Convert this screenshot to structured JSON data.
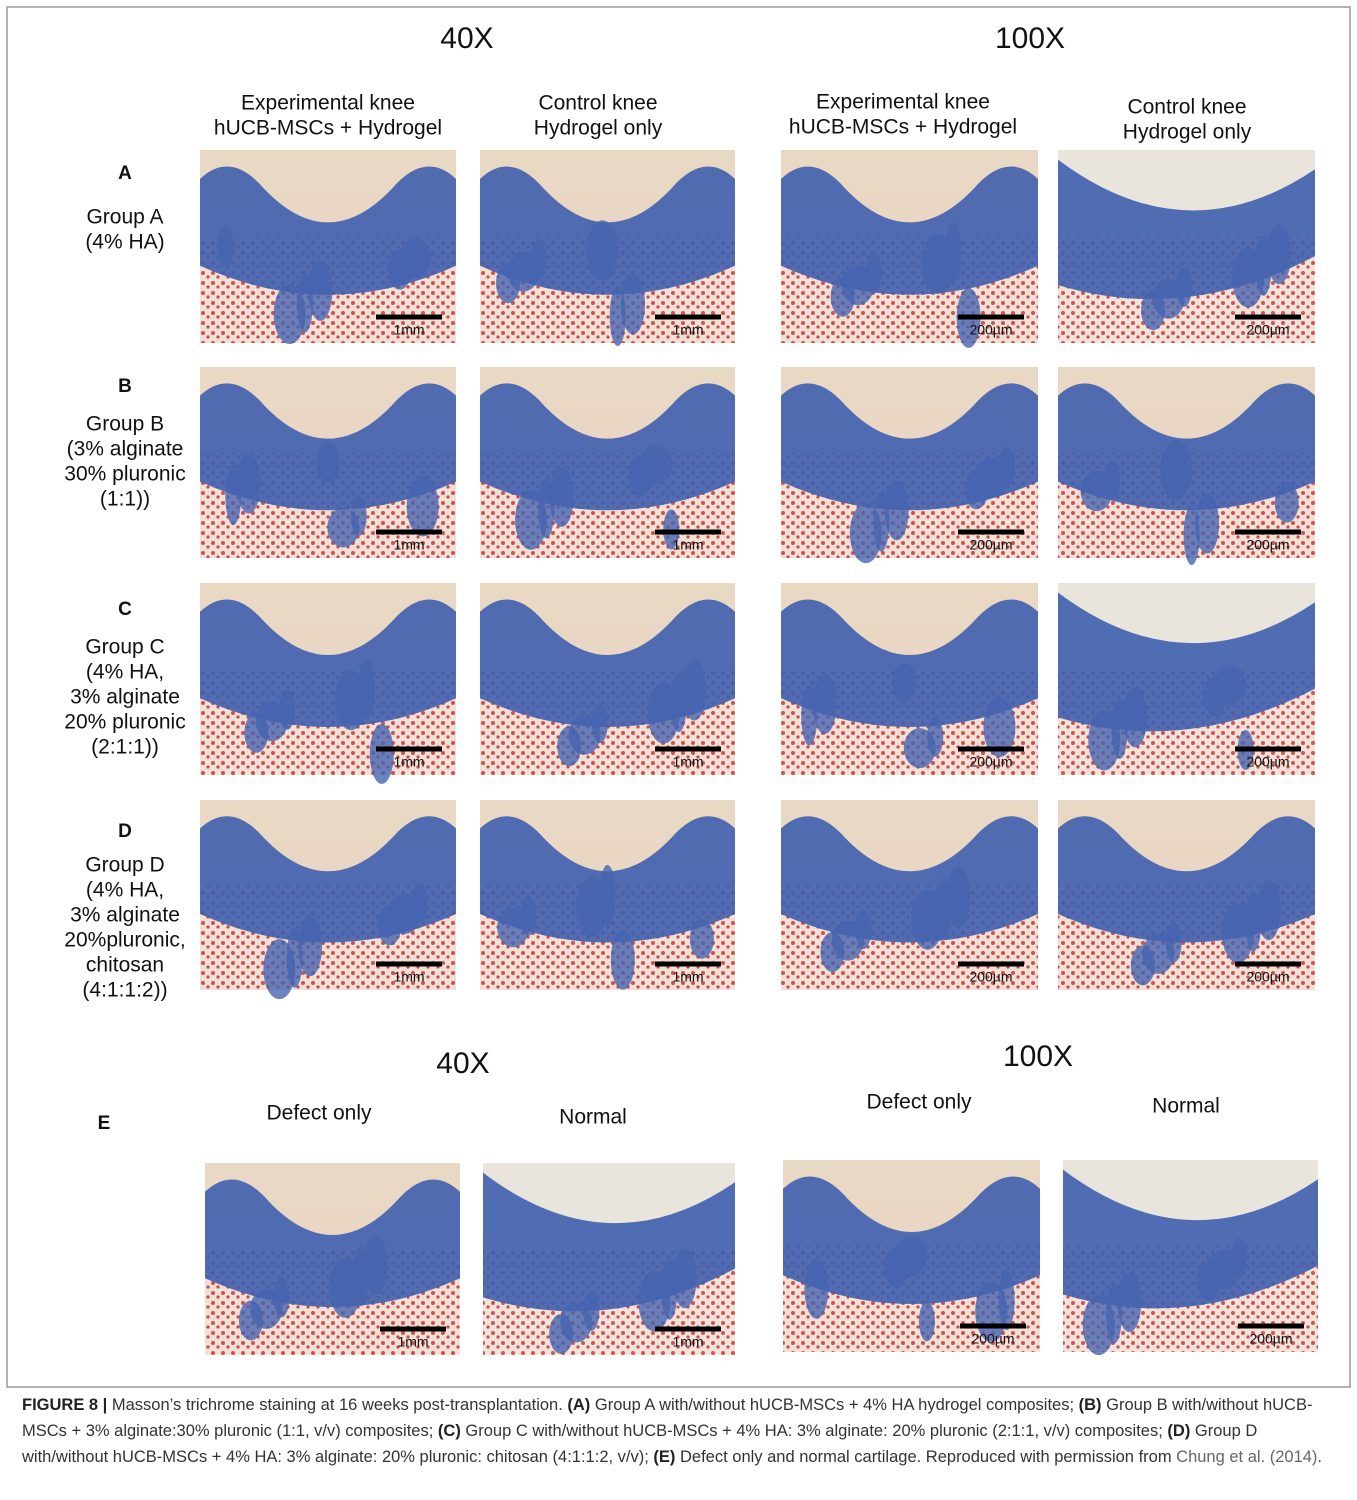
{
  "figure": {
    "magnifications": [
      "40X",
      "100X"
    ],
    "columns": [
      {
        "lines": [
          "Experimental knee",
          "hUCB-MSCs + Hydrogel"
        ]
      },
      {
        "lines": [
          "Control knee",
          "Hydrogel only"
        ]
      },
      {
        "lines": [
          "Experimental knee",
          "hUCB-MSCs + Hydrogel"
        ]
      },
      {
        "lines": [
          "Control knee",
          "Hydrogel only"
        ]
      }
    ],
    "rows": [
      {
        "letter": "A",
        "lines": [
          "Group A",
          "(4% HA)"
        ],
        "scale_bars": [
          "1mm",
          "1mm",
          "200µm",
          "200µm"
        ]
      },
      {
        "letter": "B",
        "lines": [
          "Group B",
          "(3% alginate",
          "30% pluronic",
          "(1:1))"
        ],
        "scale_bars": [
          "1mm",
          "1mm",
          "200µm",
          "200µm"
        ]
      },
      {
        "letter": "C",
        "lines": [
          "Group C",
          "(4% HA,",
          "3% alginate",
          "20% pluronic",
          "(2:1:1))"
        ],
        "scale_bars": [
          "1mm",
          "1mm",
          "200µm",
          "200µm"
        ]
      },
      {
        "letter": "D",
        "lines": [
          "Group D",
          "(4% HA,",
          "3% alginate",
          "20%pluronic,",
          "chitosan",
          "(4:1:1:2))"
        ],
        "scale_bars": [
          "1mm",
          "1mm",
          "200µm",
          "200µm"
        ]
      }
    ]
  },
  "panel_e": {
    "letter": "E",
    "magnifications": [
      "40X",
      "100X"
    ],
    "columns": [
      "Defect only",
      "Normal",
      "Defect only",
      "Normal"
    ],
    "scale_bars": [
      "1mm",
      "1mm",
      "200µm",
      "200µm"
    ]
  },
  "caption": [
    {
      "text": "FIGURE 8 |",
      "style": "bold"
    },
    {
      "text": " Masson’s trichrome staining at 16 weeks post-transplantation. "
    },
    {
      "text": "(A)",
      "style": "bold"
    },
    {
      "text": " Group A with/without hUCB-MSCs + 4% HA hydrogel composites; "
    },
    {
      "text": "(B)",
      "style": "bold"
    },
    {
      "text": " Group B with/without hUCB-MSCs + 3% alginate:30% pluronic (1:1, v/v) composites; "
    },
    {
      "text": "(C)",
      "style": "bold"
    },
    {
      "text": " Group C with/without hUCB-MSCs + 4% HA: 3% alginate: 20% pluronic (2:1:1, v/v) composites; "
    },
    {
      "text": "(D)",
      "style": "bold"
    },
    {
      "text": " Group D with/without hUCB-MSCs + 4% HA: 3% alginate: 20% pluronic: chitosan (4:1:1:2, v/v); "
    },
    {
      "text": "(E)",
      "style": "bold"
    },
    {
      "text": " Defect only and normal cartilage. Reproduced with permission from "
    },
    {
      "text": "Chung et al. (2014)",
      "style": "link"
    },
    {
      "text": "."
    }
  ]
}
